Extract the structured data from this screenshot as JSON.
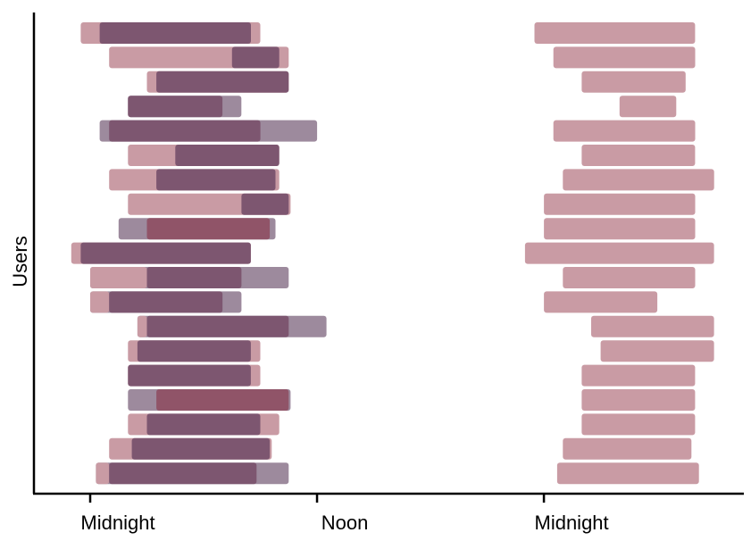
{
  "chart_data": {
    "type": "bar",
    "orientation": "horizontal-range",
    "xlabel": "",
    "ylabel": "Users",
    "x_unit": "hours",
    "xlim": [
      -3,
      35
    ],
    "x_ticks": [
      {
        "value": 0,
        "label": "Midnight"
      },
      {
        "value": 12,
        "label": "Noon"
      },
      {
        "value": 24,
        "label": "Midnight"
      }
    ],
    "grid": false,
    "legend": "none",
    "colors": {
      "light_pink": "#c99ba4",
      "mauve": "#9d8a9d",
      "dark_plum": "#7d5670",
      "overlap_red": "#905468",
      "axis": "#000000"
    },
    "rows": [
      {
        "user": 1,
        "bars": [
          {
            "s": -0.5,
            "e": 9.0,
            "c": "light_pink"
          },
          {
            "s": 0.5,
            "e": 8.5,
            "c": "dark_plum"
          },
          {
            "s": 23.5,
            "e": 32.0,
            "c": "light_pink"
          }
        ]
      },
      {
        "user": 2,
        "bars": [
          {
            "s": 1.0,
            "e": 10.5,
            "c": "light_pink"
          },
          {
            "s": 7.5,
            "e": 10.0,
            "c": "dark_plum"
          },
          {
            "s": 24.5,
            "e": 32.0,
            "c": "light_pink"
          }
        ]
      },
      {
        "user": 3,
        "bars": [
          {
            "s": 3.0,
            "e": 10.5,
            "c": "light_pink"
          },
          {
            "s": 3.5,
            "e": 10.5,
            "c": "dark_plum"
          },
          {
            "s": 26.0,
            "e": 31.5,
            "c": "light_pink"
          }
        ]
      },
      {
        "user": 4,
        "bars": [
          {
            "s": 2.0,
            "e": 8.0,
            "c": "mauve"
          },
          {
            "s": 2.0,
            "e": 7.0,
            "c": "dark_plum"
          },
          {
            "s": 28.0,
            "e": 31.0,
            "c": "light_pink"
          }
        ]
      },
      {
        "user": 5,
        "bars": [
          {
            "s": 0.5,
            "e": 12.0,
            "c": "mauve"
          },
          {
            "s": 1.0,
            "e": 9.0,
            "c": "dark_plum"
          },
          {
            "s": 24.5,
            "e": 32.0,
            "c": "light_pink"
          }
        ]
      },
      {
        "user": 6,
        "bars": [
          {
            "s": 2.0,
            "e": 10.0,
            "c": "light_pink"
          },
          {
            "s": 4.5,
            "e": 10.0,
            "c": "dark_plum"
          },
          {
            "s": 26.0,
            "e": 32.0,
            "c": "light_pink"
          }
        ]
      },
      {
        "user": 7,
        "bars": [
          {
            "s": 1.0,
            "e": 10.0,
            "c": "light_pink"
          },
          {
            "s": 3.5,
            "e": 9.8,
            "c": "dark_plum"
          },
          {
            "s": 25.0,
            "e": 33.0,
            "c": "light_pink"
          }
        ]
      },
      {
        "user": 8,
        "bars": [
          {
            "s": 2.0,
            "e": 10.6,
            "c": "light_pink"
          },
          {
            "s": 8.0,
            "e": 10.5,
            "c": "dark_plum"
          },
          {
            "s": 24.0,
            "e": 32.0,
            "c": "light_pink"
          }
        ]
      },
      {
        "user": 9,
        "bars": [
          {
            "s": 1.5,
            "e": 9.8,
            "c": "mauve"
          },
          {
            "s": 3.0,
            "e": 9.5,
            "c": "overlap_red"
          },
          {
            "s": 24.0,
            "e": 32.0,
            "c": "light_pink"
          }
        ]
      },
      {
        "user": 10,
        "bars": [
          {
            "s": -1.0,
            "e": 8.5,
            "c": "light_pink"
          },
          {
            "s": -0.5,
            "e": 8.5,
            "c": "dark_plum"
          },
          {
            "s": 23.0,
            "e": 33.0,
            "c": "light_pink"
          }
        ]
      },
      {
        "user": 11,
        "bars": [
          {
            "s": 0.0,
            "e": 10.5,
            "c": "mauve"
          },
          {
            "s": 0.0,
            "e": 3.0,
            "c": "light_pink"
          },
          {
            "s": 3.0,
            "e": 8.0,
            "c": "dark_plum"
          },
          {
            "s": 25.0,
            "e": 32.0,
            "c": "light_pink"
          }
        ]
      },
      {
        "user": 12,
        "bars": [
          {
            "s": 0.0,
            "e": 8.0,
            "c": "mauve"
          },
          {
            "s": 0.0,
            "e": 1.0,
            "c": "light_pink"
          },
          {
            "s": 1.0,
            "e": 7.0,
            "c": "dark_plum"
          },
          {
            "s": 24.0,
            "e": 30.0,
            "c": "light_pink"
          }
        ]
      },
      {
        "user": 13,
        "bars": [
          {
            "s": 2.5,
            "e": 12.5,
            "c": "mauve"
          },
          {
            "s": 2.5,
            "e": 3.0,
            "c": "light_pink"
          },
          {
            "s": 3.0,
            "e": 10.5,
            "c": "dark_plum"
          },
          {
            "s": 26.5,
            "e": 33.0,
            "c": "light_pink"
          }
        ]
      },
      {
        "user": 14,
        "bars": [
          {
            "s": 2.0,
            "e": 9.0,
            "c": "light_pink"
          },
          {
            "s": 2.5,
            "e": 8.5,
            "c": "dark_plum"
          },
          {
            "s": 27.0,
            "e": 33.0,
            "c": "light_pink"
          }
        ]
      },
      {
        "user": 15,
        "bars": [
          {
            "s": 2.0,
            "e": 9.0,
            "c": "light_pink"
          },
          {
            "s": 2.0,
            "e": 8.5,
            "c": "dark_plum"
          },
          {
            "s": 26.0,
            "e": 32.0,
            "c": "light_pink"
          }
        ]
      },
      {
        "user": 16,
        "bars": [
          {
            "s": 2.0,
            "e": 10.6,
            "c": "mauve"
          },
          {
            "s": 3.5,
            "e": 10.5,
            "c": "overlap_red"
          },
          {
            "s": 26.0,
            "e": 32.0,
            "c": "light_pink"
          }
        ]
      },
      {
        "user": 17,
        "bars": [
          {
            "s": 2.0,
            "e": 10.0,
            "c": "light_pink"
          },
          {
            "s": 3.0,
            "e": 9.0,
            "c": "dark_plum"
          },
          {
            "s": 26.0,
            "e": 32.0,
            "c": "light_pink"
          }
        ]
      },
      {
        "user": 18,
        "bars": [
          {
            "s": 1.0,
            "e": 9.6,
            "c": "light_pink"
          },
          {
            "s": 2.2,
            "e": 9.5,
            "c": "dark_plum"
          },
          {
            "s": 25.0,
            "e": 31.8,
            "c": "light_pink"
          }
        ]
      },
      {
        "user": 19,
        "bars": [
          {
            "s": 0.3,
            "e": 10.5,
            "c": "mauve"
          },
          {
            "s": 0.3,
            "e": 1.0,
            "c": "light_pink"
          },
          {
            "s": 1.0,
            "e": 8.8,
            "c": "dark_plum"
          },
          {
            "s": 24.7,
            "e": 32.2,
            "c": "light_pink"
          }
        ]
      }
    ]
  }
}
